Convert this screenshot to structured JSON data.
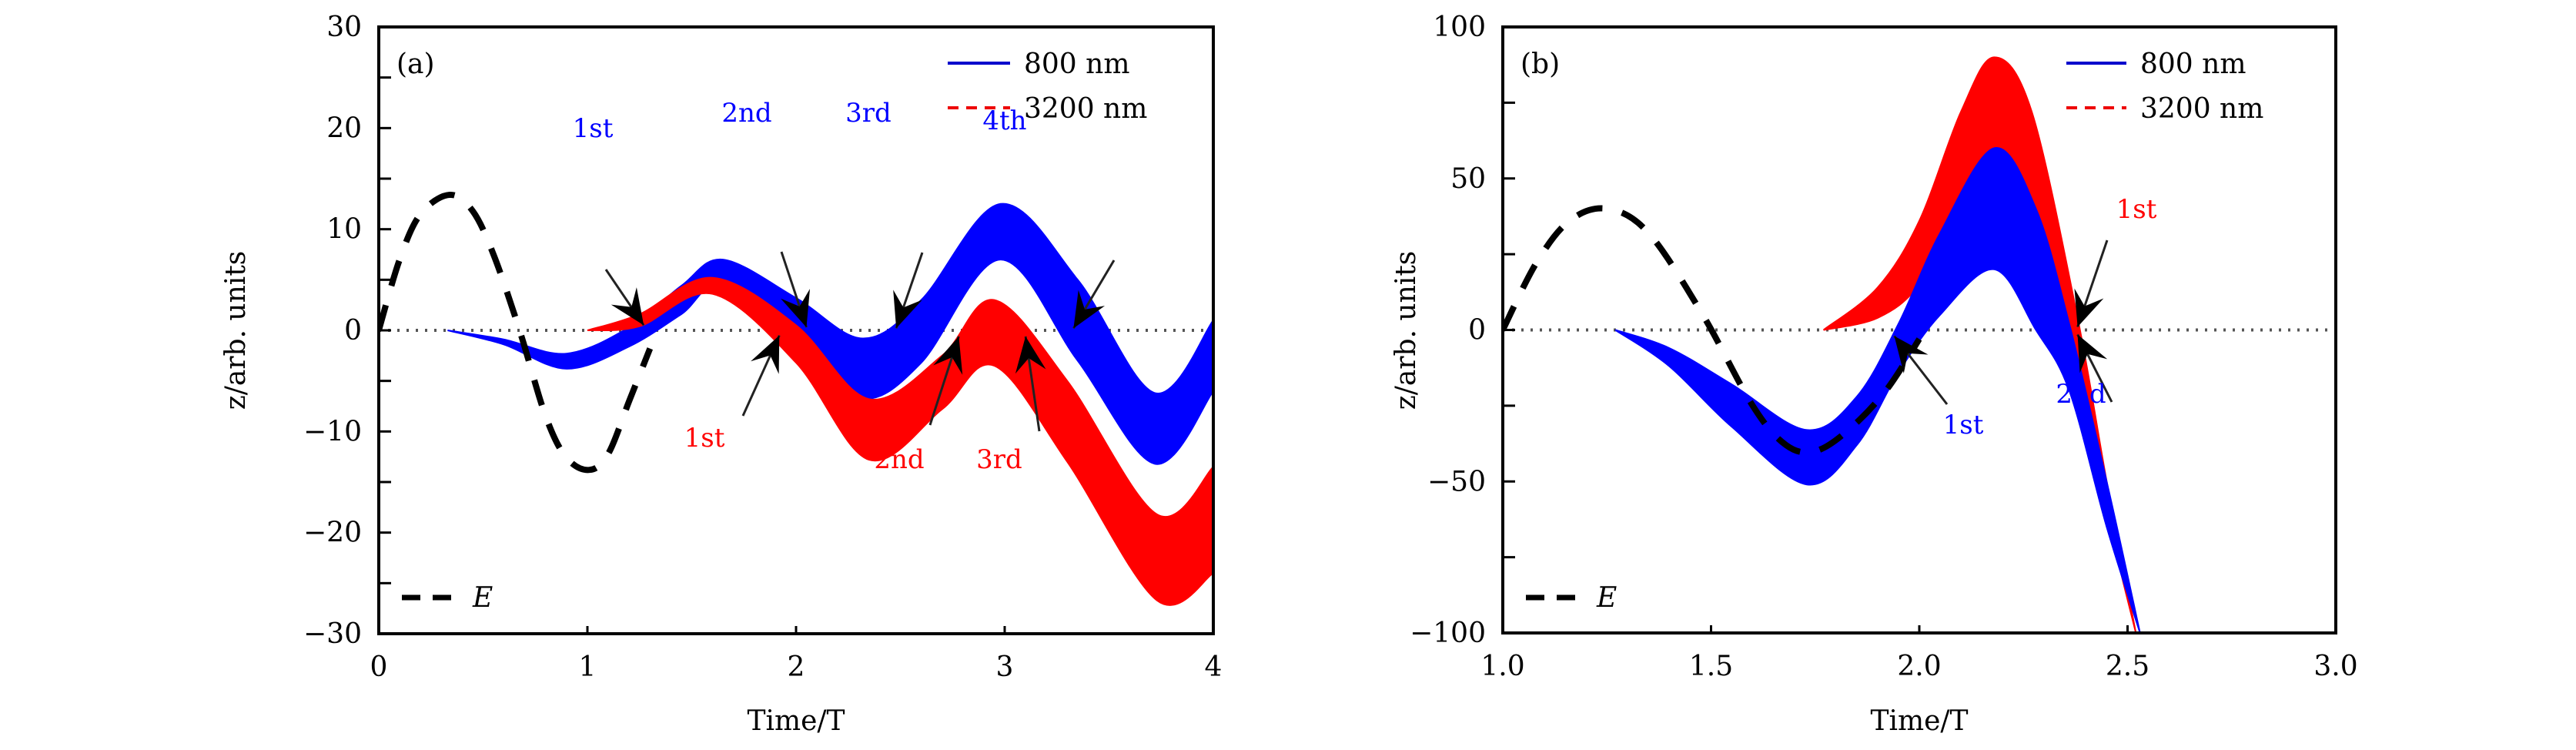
{
  "chart_data": [
    {
      "type": "area",
      "panel_label": "(a)",
      "xlabel": "Time/T",
      "ylabel": "z/arb. units",
      "xlim": [
        0,
        4
      ],
      "ylim": [
        -30,
        30
      ],
      "xticks": [
        0,
        1,
        2,
        3,
        4
      ],
      "xtick_labels": [
        "0",
        "1",
        "2",
        "3",
        "4"
      ],
      "yticks": [
        -30,
        -20,
        -10,
        0,
        10,
        20,
        30
      ],
      "ytick_labels": [
        "−30",
        "−20",
        "−10",
        "0",
        "10",
        "20",
        "30"
      ],
      "y_minor_ticks": [
        -25,
        -15,
        -5,
        5,
        15,
        25
      ],
      "grid": false,
      "reference_line": {
        "y": 0,
        "style": "dotted",
        "color": "#555555"
      },
      "legend": {
        "placement": "top-right",
        "entries": [
          {
            "label": "800 nm",
            "color": "#0000ff",
            "style": "solid"
          },
          {
            "label": "3200 nm",
            "color": "#ff0000",
            "style": "dashed"
          }
        ]
      },
      "legend_e": {
        "placement": "bottom-left",
        "label": "E",
        "color": "#000000",
        "style": "dashed"
      },
      "series": [
        {
          "name": "800 nm",
          "color": "#0000ff",
          "kind": "band",
          "x": [
            0.33,
            0.6,
            0.9,
            1.2,
            1.45,
            1.65,
            2.0,
            2.32,
            2.6,
            2.98,
            3.35,
            3.72,
            4.0
          ],
          "upper": [
            0.0,
            -0.9,
            -2.3,
            0.3,
            4.4,
            7.0,
            3.2,
            -0.8,
            3.0,
            12.5,
            5.0,
            -6.2,
            1.0
          ],
          "lower": [
            0.0,
            -1.4,
            -3.8,
            -1.6,
            1.6,
            4.4,
            -2.8,
            -6.8,
            -3.2,
            7.0,
            -3.0,
            -13.2,
            -6.0
          ]
        },
        {
          "name": "3200 nm",
          "color": "#ff0000",
          "kind": "band",
          "x": [
            1.0,
            1.25,
            1.6,
            2.0,
            2.35,
            2.7,
            2.95,
            3.3,
            3.73,
            4.0
          ],
          "upper": [
            0.0,
            1.6,
            5.2,
            0.5,
            -6.8,
            -2.5,
            3.0,
            -5.0,
            -18.2,
            -13.5
          ],
          "lower": [
            0.0,
            0.4,
            3.6,
            -3.2,
            -12.8,
            -7.8,
            -3.5,
            -13.0,
            -26.7,
            -24.0
          ]
        },
        {
          "name": "E",
          "color": "#000000",
          "kind": "dashed-line",
          "x": [
            0.0,
            0.1,
            0.2,
            0.34,
            0.45,
            0.55,
            0.675,
            0.8,
            0.9,
            1.01,
            1.1,
            1.2,
            1.3
          ],
          "y": [
            0.0,
            7.0,
            11.5,
            13.4,
            11.8,
            7.5,
            0.0,
            -8.5,
            -12.6,
            -13.8,
            -12.2,
            -7.0,
            -1.8
          ]
        }
      ],
      "annotations": [
        {
          "text": "1st",
          "color": "#0000ff",
          "series": "800 nm",
          "target": [
            1.27,
            0.5
          ]
        },
        {
          "text": "2nd",
          "color": "#0000ff",
          "series": "800 nm",
          "target": [
            2.05,
            0.3
          ]
        },
        {
          "text": "3rd",
          "color": "#0000ff",
          "series": "800 nm",
          "target": [
            2.48,
            0.2
          ]
        },
        {
          "text": "4th",
          "color": "#0000ff",
          "series": "800 nm",
          "target": [
            3.33,
            0.2
          ]
        },
        {
          "text": "1st",
          "color": "#ff0000",
          "series": "3200 nm",
          "target": [
            1.92,
            -0.5
          ]
        },
        {
          "text": "2nd",
          "color": "#ff0000",
          "series": "3200 nm",
          "target": [
            2.78,
            -0.6
          ]
        },
        {
          "text": "3rd",
          "color": "#ff0000",
          "series": "3200 nm",
          "target": [
            3.1,
            -0.6
          ]
        }
      ]
    },
    {
      "type": "area",
      "panel_label": "(b)",
      "xlabel": "Time/T",
      "ylabel": "z/arb. units",
      "xlim": [
        1.0,
        3.0
      ],
      "ylim": [
        -100,
        100
      ],
      "xticks": [
        1.0,
        1.5,
        2.0,
        2.5,
        3.0
      ],
      "xtick_labels": [
        "1.0",
        "1.5",
        "2.0",
        "2.5",
        "3.0"
      ],
      "yticks": [
        -100,
        -50,
        0,
        50,
        100
      ],
      "ytick_labels": [
        "−100",
        "−50",
        "0",
        "50",
        "100"
      ],
      "y_minor_ticks": [
        -75,
        -25,
        25,
        75
      ],
      "grid": false,
      "reference_line": {
        "y": 0,
        "style": "dotted",
        "color": "#555555"
      },
      "legend": {
        "placement": "top-right",
        "entries": [
          {
            "label": "800 nm",
            "color": "#0000ff",
            "style": "solid"
          },
          {
            "label": "3200 nm",
            "color": "#ff0000",
            "style": "dashed"
          }
        ]
      },
      "legend_e": {
        "placement": "bottom-left",
        "label": "E",
        "color": "#000000",
        "style": "dashed"
      },
      "series": [
        {
          "name": "3200 nm",
          "color": "#ff0000",
          "kind": "band",
          "x": [
            1.77,
            1.9,
            2.0,
            2.1,
            2.18,
            2.27,
            2.38,
            2.45,
            2.52
          ],
          "upper": [
            0.0,
            14.0,
            36.0,
            72.0,
            90.0,
            72.0,
            4.0,
            -50.0,
            -100.0
          ],
          "lower": [
            0.0,
            4.0,
            15.0,
            40.0,
            58.0,
            42.0,
            -10.0,
            -60.0,
            -100.0
          ]
        },
        {
          "name": "800 nm",
          "color": "#0000ff",
          "kind": "band",
          "x": [
            1.27,
            1.4,
            1.55,
            1.73,
            1.85,
            1.95,
            2.05,
            2.18,
            2.28,
            2.36,
            2.45,
            2.53
          ],
          "upper": [
            0.0,
            -6.0,
            -18.0,
            -33.0,
            -22.0,
            2.0,
            32.0,
            60.0,
            40.0,
            2.0,
            -50.0,
            -100.0
          ],
          "lower": [
            0.0,
            -12.0,
            -32.0,
            -51.0,
            -38.0,
            -14.0,
            5.0,
            20.0,
            0.0,
            -20.0,
            -65.0,
            -100.0
          ]
        },
        {
          "name": "E",
          "color": "#000000",
          "kind": "dashed-line",
          "x": [
            1.0,
            1.08,
            1.16,
            1.25,
            1.35,
            1.48,
            1.6,
            1.68,
            1.75,
            1.83,
            1.92,
            2.0
          ],
          "y": [
            0.0,
            22.0,
            36.0,
            40.0,
            32.0,
            5.0,
            -25.0,
            -38.0,
            -40.0,
            -33.0,
            -20.0,
            -3.0
          ]
        }
      ],
      "annotations": [
        {
          "text": "1st",
          "color": "#ff0000",
          "series": "3200 nm",
          "target": [
            2.38,
            1.0
          ]
        },
        {
          "text": "1st",
          "color": "#0000ff",
          "series": "800 nm",
          "target": [
            1.94,
            -2.0
          ]
        },
        {
          "text": "2nd",
          "color": "#0000ff",
          "series": "800 nm",
          "target": [
            2.38,
            -1.5
          ]
        }
      ]
    }
  ]
}
